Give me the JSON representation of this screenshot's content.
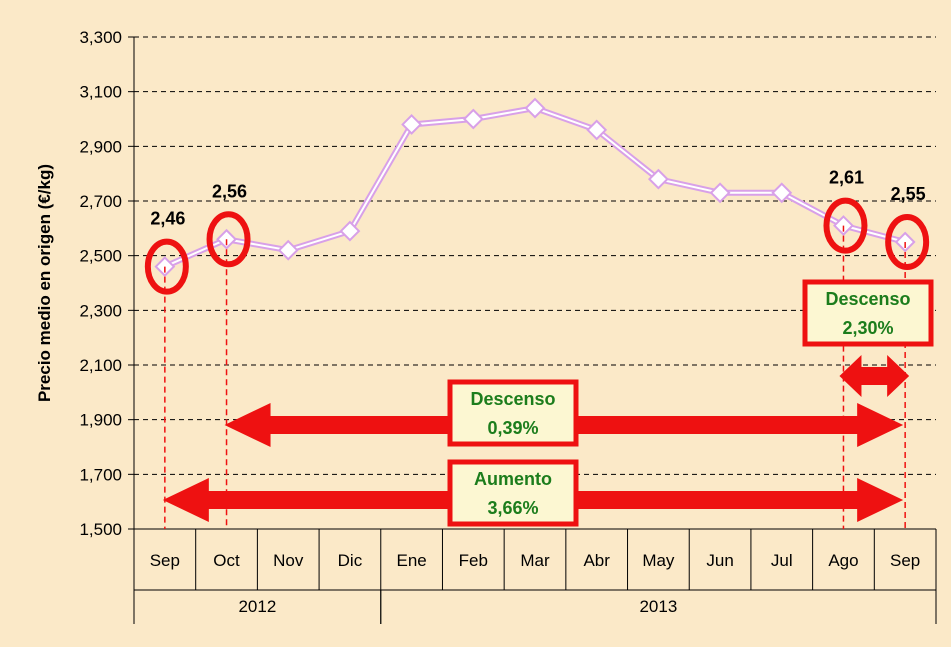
{
  "chart_data": {
    "type": "line",
    "ylabel": "Precio medio en origen (€/kg)",
    "y_ticks": [
      "3,300",
      "3,100",
      "2,900",
      "2,700",
      "2,500",
      "2,300",
      "2,100",
      "1,900",
      "1,700",
      "1,500"
    ],
    "y_tick_values": [
      3.3,
      3.1,
      2.9,
      2.7,
      2.5,
      2.3,
      2.1,
      1.9,
      1.7,
      1.5
    ],
    "ylim": [
      1.5,
      3.3
    ],
    "grid": "horizontal dashed",
    "categories": [
      "Sep",
      "Oct",
      "Nov",
      "Dic",
      "Ene",
      "Feb",
      "Mar",
      "Abr",
      "May",
      "Jun",
      "Jul",
      "Ago",
      "Sep"
    ],
    "years": [
      {
        "label": "2012",
        "span": [
          0,
          3
        ]
      },
      {
        "label": "2013",
        "span": [
          4,
          12
        ]
      }
    ],
    "series": [
      {
        "values": [
          2.46,
          2.56,
          2.52,
          2.59,
          2.98,
          3.0,
          3.04,
          2.96,
          2.78,
          2.73,
          2.73,
          2.61,
          2.55
        ],
        "color": "#d8a0e8"
      }
    ],
    "data_labels": [
      {
        "index": 0,
        "text": "2,46"
      },
      {
        "index": 1,
        "text": "2,56"
      },
      {
        "index": 11,
        "text": "2,61"
      },
      {
        "index": 12,
        "text": "2,55"
      }
    ],
    "annotations": [
      {
        "line1": "Descenso",
        "line2": "2,30%",
        "from_index": 11,
        "to_index": 12
      },
      {
        "line1": "Descenso",
        "line2": "0,39%",
        "from_index": 1,
        "to_index": 12
      },
      {
        "line1": "Aumento",
        "line2": "3,66%",
        "from_index": 0,
        "to_index": 12
      }
    ],
    "colors": {
      "background": "#fbe9c8",
      "highlight": "#ee1111",
      "annotation_text": "#1c7d1c",
      "annotation_box": "#fcf7d2"
    }
  }
}
